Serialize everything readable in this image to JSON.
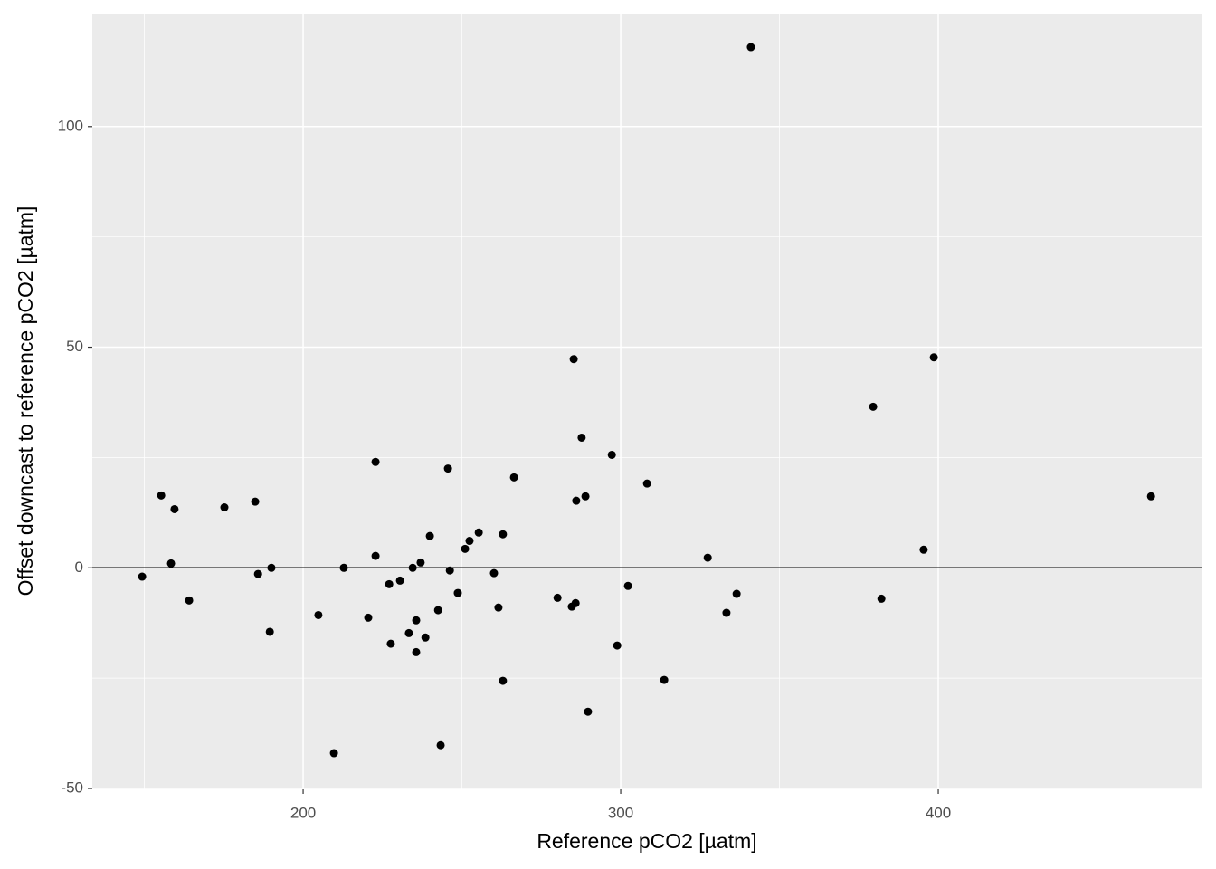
{
  "chart_data": {
    "type": "scatter",
    "x_label": "Reference pCO2 [µatm]",
    "y_label": "Offset downcast to reference pCO2 [µatm]",
    "xlim": [
      133.6,
      482.9
    ],
    "ylim": [
      -50.2,
      125.6
    ],
    "xticks": [
      200,
      300,
      400
    ],
    "yticks": [
      -50,
      0,
      50,
      100
    ],
    "xminor": [
      150,
      250,
      350,
      450
    ],
    "yminor": [
      -25,
      25,
      75
    ],
    "hline": 0,
    "grid": true,
    "color": "#000000",
    "x": [
      149.3,
      155.3,
      159.5,
      158.4,
      164.1,
      175.2,
      184.9,
      185.8,
      190.0,
      189.5,
      204.8,
      209.7,
      212.8,
      220.5,
      222.8,
      222.8,
      227.1,
      227.6,
      230.5,
      233.3,
      234.5,
      235.6,
      235.6,
      237.0,
      238.5,
      239.9,
      242.5,
      243.3,
      245.6,
      246.2,
      248.7,
      251.0,
      252.4,
      255.3,
      260.1,
      261.5,
      262.9,
      262.9,
      266.4,
      280.1,
      284.6,
      285.8,
      285.2,
      286.0,
      287.7,
      288.9,
      289.7,
      297.2,
      298.9,
      302.3,
      308.3,
      313.7,
      327.4,
      333.3,
      336.5,
      341.0,
      379.5,
      382.1,
      395.4,
      398.6,
      467.0
    ],
    "values": [
      -2.0,
      16.4,
      13.3,
      1.0,
      -7.4,
      13.7,
      15.0,
      -1.4,
      0.0,
      -14.5,
      -10.7,
      -42.0,
      0.0,
      -11.3,
      24.0,
      2.7,
      -3.7,
      -17.2,
      -2.9,
      -14.8,
      0.0,
      -11.9,
      -19.1,
      1.2,
      -15.8,
      7.2,
      -9.6,
      -40.2,
      22.5,
      -0.6,
      -5.7,
      4.3,
      6.1,
      8.0,
      -1.2,
      -9.0,
      7.6,
      -25.6,
      20.5,
      -6.8,
      -8.8,
      -8.0,
      47.3,
      15.2,
      29.5,
      16.2,
      -32.6,
      25.6,
      -17.6,
      -4.1,
      19.1,
      -25.4,
      2.3,
      -10.2,
      -5.9,
      118.0,
      36.5,
      -7.0,
      4.1,
      47.7,
      16.2
    ]
  }
}
